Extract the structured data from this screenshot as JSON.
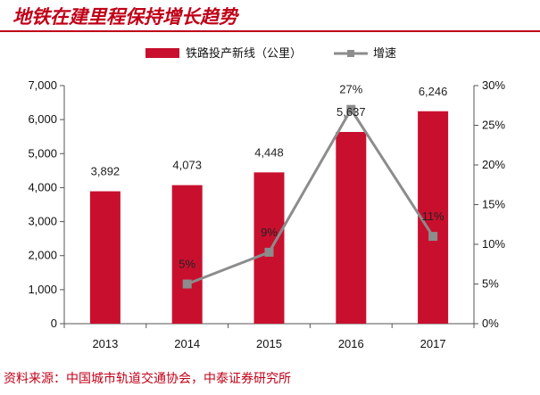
{
  "header": {
    "title": "地铁在建里程保持增长趋势"
  },
  "footer": {
    "source": "资料来源：中国城市轨道交通协会，中泰证券研究所"
  },
  "colors": {
    "accent": "#c00018",
    "bar": "#c8102e",
    "line": "#8c8c8c"
  },
  "chart_data": {
    "type": "bar",
    "title": "",
    "categories": [
      "2013",
      "2014",
      "2015",
      "2016",
      "2017"
    ],
    "series": [
      {
        "name": "铁路投产新线（公里）",
        "type": "bar",
        "axis": "left",
        "values": [
          3892,
          4073,
          4448,
          5637,
          6246
        ],
        "labels": [
          "3,892",
          "4,073",
          "4,448",
          "5,637",
          "6,246"
        ]
      },
      {
        "name": "增速",
        "type": "line",
        "axis": "right",
        "values": [
          null,
          0.05,
          0.09,
          0.27,
          0.11
        ],
        "labels": [
          "",
          "5%",
          "9%",
          "27%",
          "11%"
        ]
      }
    ],
    "y_left": {
      "min": 0,
      "max": 7000,
      "ticks": [
        "0",
        "1,000",
        "2,000",
        "3,000",
        "4,000",
        "5,000",
        "6,000",
        "7,000"
      ]
    },
    "y_right": {
      "min": 0,
      "max": 0.3,
      "ticks": [
        "0%",
        "5%",
        "10%",
        "15%",
        "20%",
        "25%",
        "30%"
      ]
    },
    "legend_position": "top",
    "grid": false
  }
}
